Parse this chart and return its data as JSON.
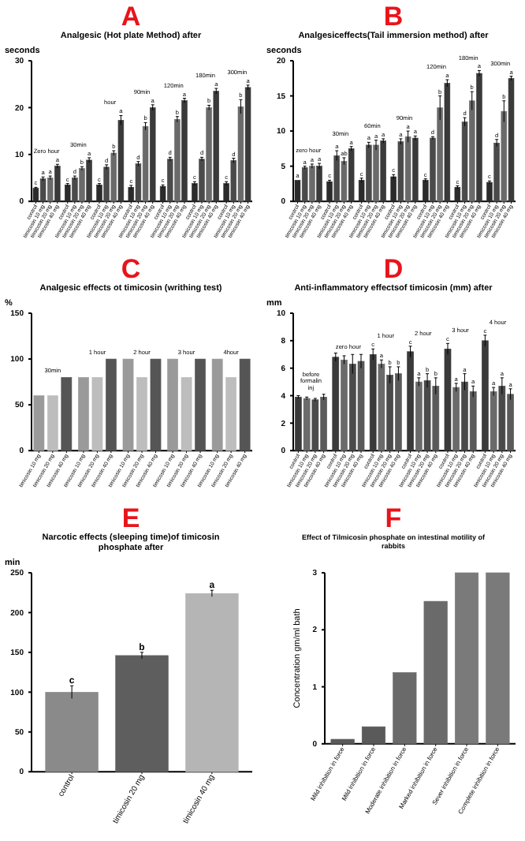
{
  "chart_data": [
    {
      "type": "bar",
      "title": "A",
      "subtitle": "Analgesic (Hot plate Method) after",
      "ylabel": "seconds",
      "ylim": [
        0,
        30
      ],
      "yticks": [
        0,
        10,
        20,
        30
      ],
      "categories": [
        "Zero hour",
        "30min",
        "hour",
        "90min",
        "120min",
        "180min",
        "300min"
      ],
      "series": [
        {
          "name": "control",
          "color": "#2b2b2b",
          "values": [
            2.8,
            3.5,
            3.5,
            3.0,
            3.2,
            3.8,
            3.8
          ],
          "errors": [
            0.2,
            0.3,
            0.3,
            0.4,
            0.3,
            0.4,
            0.4
          ],
          "value_labels": [
            "c",
            "c",
            "c",
            "c",
            "c",
            "c",
            "c"
          ]
        },
        {
          "name": "timicosin 10 mg",
          "color": "#4a4a4a",
          "values": [
            4.8,
            5.0,
            7.3,
            8.0,
            9.0,
            9.0,
            8.7
          ],
          "errors": [
            0.4,
            0.4,
            0.5,
            0.5,
            0.4,
            0.4,
            0.5
          ],
          "value_labels": [
            "a",
            "d",
            "d",
            "d",
            "d",
            "d",
            "d"
          ]
        },
        {
          "name": "timicosin 20 mg",
          "color": "#6a6a6a",
          "values": [
            5.0,
            7.0,
            10.3,
            16.0,
            17.5,
            20.0,
            20.2
          ],
          "errors": [
            0.4,
            0.4,
            0.5,
            0.8,
            0.6,
            0.5,
            1.5
          ],
          "value_labels": [
            "a",
            "b",
            "b",
            "b",
            "b",
            "b",
            "b"
          ]
        },
        {
          "name": "timicosin 40 mg",
          "color": "#3a3a3a",
          "values": [
            7.5,
            8.8,
            17.3,
            20.0,
            21.5,
            23.5,
            24.3
          ],
          "errors": [
            0.4,
            0.5,
            1.0,
            0.6,
            0.5,
            0.6,
            0.5
          ],
          "value_labels": [
            "a",
            "a",
            "a",
            "a",
            "a",
            "a",
            "a"
          ]
        }
      ]
    },
    {
      "type": "bar",
      "title": "B",
      "subtitle": "Analgesiceffects(Tail immersion method) after",
      "ylabel": "seconds",
      "ylim": [
        0,
        20
      ],
      "yticks": [
        0,
        5,
        10,
        15,
        20
      ],
      "categories": [
        "zero hour",
        "30min",
        "60min",
        "90min",
        "120min",
        "180min",
        "300min"
      ],
      "series": [
        {
          "name": "control",
          "color": "#2b2b2b",
          "values": [
            3.0,
            2.8,
            3.0,
            3.5,
            3.0,
            2.0,
            2.7
          ],
          "errors": [
            null,
            0.2,
            0.3,
            0.3,
            0.2,
            0.2,
            0.2
          ],
          "value_labels": [
            "a",
            "c",
            "c",
            "c",
            "c",
            "c",
            "c"
          ]
        },
        {
          "name": "timicosin 10 mg",
          "color": "#4a4a4a",
          "values": [
            4.8,
            6.5,
            8.0,
            8.5,
            9.0,
            11.3,
            8.3
          ],
          "errors": [
            0.2,
            0.7,
            0.4,
            0.4,
            0.2,
            0.6,
            0.5
          ],
          "value_labels": [
            "a",
            "a",
            "a",
            "a",
            "d",
            "d",
            "d"
          ]
        },
        {
          "name": "timicosin 20 mg",
          "color": "#6a6a6a",
          "values": [
            5.0,
            5.7,
            8.0,
            9.2,
            13.3,
            14.3,
            12.8
          ],
          "errors": [
            0.3,
            0.5,
            0.7,
            0.8,
            1.7,
            1.3,
            1.5
          ],
          "value_labels": [
            "a",
            "ab",
            "a",
            "a",
            "b",
            "b",
            "b"
          ]
        },
        {
          "name": "timicosin 40 mg",
          "color": "#3a3a3a",
          "values": [
            5.0,
            7.5,
            8.6,
            9.0,
            16.8,
            18.2,
            17.5
          ],
          "errors": [
            0.4,
            0.3,
            0.3,
            0.3,
            0.5,
            0.4,
            0.3
          ],
          "value_labels": [
            "a",
            "a",
            "a",
            "a",
            "a",
            "a",
            "a"
          ]
        }
      ]
    },
    {
      "type": "bar",
      "title": "C",
      "subtitle": "Analgesic effects ot timicosin (writhing test)",
      "ylabel": "%",
      "ylim": [
        0,
        150
      ],
      "yticks": [
        0,
        50,
        100,
        150
      ],
      "categories": [
        "30min",
        "1 hour",
        "2 hour",
        "3 hour",
        "4hour"
      ],
      "series": [
        {
          "name": "timicosin 10 mg",
          "color": "#9a9a9a",
          "values": [
            60,
            80,
            100,
            100,
            100
          ]
        },
        {
          "name": "timicosin 20 mg",
          "color": "#bdbdbd",
          "values": [
            60,
            80,
            80,
            80,
            80
          ]
        },
        {
          "name": "timicosin 40 mg",
          "color": "#555555",
          "values": [
            80,
            100,
            100,
            100,
            100
          ]
        }
      ]
    },
    {
      "type": "bar",
      "title": "D",
      "subtitle": "Anti-inflammatory effectsof timicosin (mm) after",
      "ylabel": "mm",
      "ylim": [
        0,
        10
      ],
      "yticks": [
        0,
        2,
        4,
        6,
        8,
        10
      ],
      "categories": [
        "before formalin inj",
        "zero hour",
        "1 hour",
        "2 hour",
        "3 hour",
        "4 hour"
      ],
      "series": [
        {
          "name": "control",
          "color": "#3a3a3a",
          "values": [
            3.9,
            6.8,
            7.0,
            7.2,
            7.4,
            8.0
          ],
          "errors": [
            0.1,
            0.3,
            0.4,
            0.4,
            0.4,
            0.4
          ],
          "value_labels": [
            null,
            null,
            "c",
            "c",
            "c",
            "c"
          ]
        },
        {
          "name": "timicosin 10 mg",
          "color": "#6a6a6a",
          "values": [
            3.8,
            6.6,
            6.3,
            5.0,
            4.6,
            4.3
          ],
          "errors": [
            0.1,
            0.3,
            0.3,
            0.3,
            0.3,
            0.3
          ],
          "value_labels": [
            null,
            null,
            "a",
            "a",
            "a",
            "a"
          ]
        },
        {
          "name": "timicosin 20 mg",
          "color": "#4a4a4a",
          "values": [
            3.7,
            6.3,
            5.5,
            5.1,
            5.0,
            4.7
          ],
          "errors": [
            0.1,
            0.7,
            0.6,
            0.5,
            0.6,
            0.6
          ],
          "value_labels": [
            null,
            null,
            "b",
            "b",
            "a",
            "a"
          ]
        },
        {
          "name": "timicosin 40 mg",
          "color": "#5a5a5a",
          "values": [
            3.9,
            6.5,
            5.6,
            4.7,
            4.3,
            4.1
          ],
          "errors": [
            0.2,
            0.5,
            0.5,
            0.6,
            0.4,
            0.4
          ],
          "value_labels": [
            null,
            null,
            "b",
            "b",
            "a",
            "a"
          ]
        }
      ]
    },
    {
      "type": "bar",
      "title": "E",
      "subtitle": "Narcotic effects (sleeping time)of timicosin phosphate after",
      "ylabel": "min",
      "ylim": [
        0,
        250
      ],
      "yticks": [
        0,
        50,
        100,
        150,
        200,
        250
      ],
      "categories": [
        "control",
        "timicosin 20 mg",
        "timicosin 40 mg"
      ],
      "values": [
        100,
        146,
        224
      ],
      "errors": [
        8,
        4,
        4
      ],
      "value_labels": [
        "c",
        "b",
        "a"
      ],
      "colors": [
        "#8a8a8a",
        "#5e5e5e",
        "#b5b5b5"
      ]
    },
    {
      "type": "bar",
      "title": "F",
      "subtitle": "Effect of Tilmicosin phosphate on intestinal motility of rabbits",
      "ylabel": "Concentration gm/ml bath",
      "ylim": [
        0,
        3
      ],
      "yticks": [
        0,
        1,
        2,
        3
      ],
      "categories": [
        "Mild inhibition in force",
        "Mild inhibition in force",
        "Moderate inhibition in force",
        "Marked inhibition in force",
        "Sever inhibition in force",
        "Complete inhibition in force"
      ],
      "values": [
        0.08,
        0.3,
        1.25,
        2.5,
        3,
        3
      ],
      "colors": [
        "#5a5a5a",
        "#5a5a5a",
        "#6a6a6a",
        "#6a6a6a",
        "#7a7a7a",
        "#7a7a7a"
      ]
    }
  ]
}
